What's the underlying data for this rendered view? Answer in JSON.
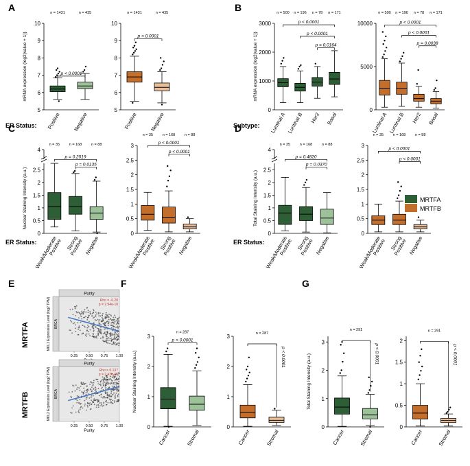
{
  "colors": {
    "mrtfa_dark": "#2d5e35",
    "mrtfa_light": "#9dc29a",
    "mrtfb_dark": "#c46e2c",
    "mrtfb_light": "#e8bf9a",
    "scatter_fill": "#e8e8e8",
    "trend": "#4a7bc4",
    "corr": "#c0392b"
  },
  "legend": {
    "items": [
      {
        "label": "MRTFA",
        "color": "#2d5e35"
      },
      {
        "label": "MRTFB",
        "color": "#c46e2c"
      }
    ]
  },
  "row_labels": {
    "er_status": "ER Status:",
    "subtype": "Subtype:"
  },
  "side_labels": {
    "mrtfa": "MRTFA",
    "mrtfb": "MRTFB"
  },
  "chart_data": [
    {
      "id": "A1",
      "panel_letter": "A",
      "type": "box",
      "ylabel": "mRNA expression (log2(value + 1))",
      "ylim": [
        5,
        10
      ],
      "yticks": [
        5,
        6,
        7,
        8,
        9,
        10
      ],
      "categories": [
        "Positive",
        "Negative"
      ],
      "n_labels": [
        "n = 1431",
        "n = 435"
      ],
      "boxes": [
        {
          "whislo": 5.6,
          "q1": 6.05,
          "med": 6.2,
          "q3": 6.38,
          "whishi": 6.85,
          "color": "#2d5e35",
          "outliers": [
            6.9,
            7.0,
            7.1,
            7.2,
            7.3,
            7.4,
            5.5
          ]
        },
        {
          "whislo": 5.6,
          "q1": 6.22,
          "med": 6.38,
          "q3": 6.6,
          "whishi": 7.1,
          "color": "#9dc29a",
          "outliers": [
            7.2,
            7.3,
            7.5
          ]
        }
      ],
      "comparisons": [
        {
          "from": 0,
          "to": 1,
          "y": 6.95,
          "label": "p < 0.0001"
        }
      ]
    },
    {
      "id": "A2",
      "type": "box",
      "ylabel": "",
      "ylim": [
        5,
        10
      ],
      "yticks": [
        5,
        6,
        7,
        8,
        9,
        10
      ],
      "categories": [
        "Positive",
        "Negative"
      ],
      "n_labels": [
        "n = 1431",
        "n = 435"
      ],
      "boxes": [
        {
          "whislo": 5.5,
          "q1": 6.6,
          "med": 6.9,
          "q3": 7.2,
          "whishi": 8.1,
          "color": "#c46e2c",
          "outliers": [
            8.2,
            8.3,
            8.4,
            8.5,
            8.6,
            8.7,
            8.9,
            5.4
          ]
        },
        {
          "whislo": 5.4,
          "q1": 6.1,
          "med": 6.3,
          "q3": 6.55,
          "whishi": 7.2,
          "color": "#e8bf9a",
          "outliers": [
            7.3,
            7.4,
            7.6,
            7.8,
            8.0,
            5.3
          ]
        }
      ],
      "comparisons": [
        {
          "from": 0,
          "to": 1,
          "y": 9.1,
          "label": "p < 0.0001"
        }
      ]
    },
    {
      "id": "B1",
      "panel_letter": "B",
      "type": "box",
      "ylabel": "mRNA expression (log2(value + 1))",
      "ylim": [
        0,
        3000
      ],
      "yticks": [
        0,
        1000,
        2000,
        3000
      ],
      "categories": [
        "Luminal A",
        "Luminal B",
        "Her2",
        "Basal"
      ],
      "n_labels": [
        "n = 500",
        "n = 196",
        "n = 78",
        "n = 171"
      ],
      "boxes": [
        {
          "whislo": 250,
          "q1": 800,
          "med": 940,
          "q3": 1080,
          "whishi": 1500,
          "color": "#2d5e35",
          "outliers": [
            1600,
            1700,
            1800
          ]
        },
        {
          "whislo": 250,
          "q1": 650,
          "med": 780,
          "q3": 920,
          "whishi": 1350,
          "color": "#2d5e35",
          "outliers": [
            1420,
            1500,
            1550
          ]
        },
        {
          "whislo": 400,
          "q1": 820,
          "med": 960,
          "q3": 1120,
          "whishi": 1500,
          "color": "#2d5e35",
          "outliers": [
            1600
          ]
        },
        {
          "whislo": 450,
          "q1": 880,
          "med": 1070,
          "q3": 1300,
          "whishi": 2050,
          "color": "#2d5e35",
          "outliers": []
        }
      ],
      "comparisons": [
        {
          "from": 0,
          "to": 3,
          "y": 2950,
          "label": "p < 0.0001"
        },
        {
          "from": 1,
          "to": 3,
          "y": 2550,
          "label": "p < 0.0001"
        },
        {
          "from": 2,
          "to": 3,
          "y": 2150,
          "label": "p = 0.0164"
        }
      ]
    },
    {
      "id": "B2",
      "type": "box",
      "ylabel": "",
      "ylim": [
        0,
        10000
      ],
      "yticks": [
        0,
        5000,
        10000
      ],
      "categories": [
        "Luminal A",
        "Luminal B",
        "Her2",
        "Basal"
      ],
      "n_labels": [
        "n = 500",
        "n = 196",
        "n = 78",
        "n = 171"
      ],
      "boxes": [
        {
          "whislo": 300,
          "q1": 1700,
          "med": 2500,
          "q3": 3400,
          "whishi": 5900,
          "color": "#c46e2c",
          "outliers": [
            6100,
            6400,
            6800,
            7200,
            7600,
            8000,
            8500,
            9000
          ]
        },
        {
          "whislo": 400,
          "q1": 1800,
          "med": 2500,
          "q3": 3200,
          "whishi": 5400,
          "color": "#c46e2c",
          "outliers": [
            5600,
            5900,
            6200,
            6600
          ]
        },
        {
          "whislo": 300,
          "q1": 1000,
          "med": 1300,
          "q3": 1800,
          "whishi": 2700,
          "color": "#c46e2c",
          "outliers": [
            3000,
            4600
          ]
        },
        {
          "whislo": 200,
          "q1": 700,
          "med": 1000,
          "q3": 1300,
          "whishi": 2100,
          "color": "#c46e2c",
          "outliers": [
            2300,
            2500,
            3400
          ]
        }
      ],
      "comparisons": [
        {
          "from": 0,
          "to": 3,
          "y": 9800,
          "label": "p < 0.0001"
        },
        {
          "from": 1,
          "to": 3,
          "y": 8600,
          "label": "p < 0.0001"
        },
        {
          "from": 2,
          "to": 3,
          "y": 7400,
          "label": "p = 0.0038"
        }
      ]
    },
    {
      "id": "C1",
      "panel_letter": "C",
      "type": "box",
      "ylabel": "Nuclear Staining Intensity (a.u.)",
      "ylim": [
        0,
        2.75
      ],
      "yticks": [
        0,
        0.5,
        1,
        1.5,
        2,
        2.5
      ],
      "break_tick": "4",
      "categories": [
        "Weak/Moderate Positive",
        "Strong Positive",
        "Negative"
      ],
      "n_labels": [
        "n = 35",
        "n = 168",
        "n = 88"
      ],
      "boxes": [
        {
          "whislo": 0.25,
          "q1": 0.55,
          "med": 1.05,
          "q3": 1.6,
          "whishi": 2.75,
          "color": "#2d5e35",
          "outliers": []
        },
        {
          "whislo": 0.1,
          "q1": 0.75,
          "med": 1.05,
          "q3": 1.45,
          "whishi": 2.35,
          "color": "#2d5e35",
          "outliers": [
            2.4,
            2.45
          ]
        },
        {
          "whislo": 0.05,
          "q1": 0.55,
          "med": 0.8,
          "q3": 1.05,
          "whishi": 2.05,
          "color": "#9dc29a",
          "outliers": [
            2.1,
            2.2,
            0.0
          ]
        }
      ],
      "comparisons": [
        {
          "from": 0,
          "to": 2,
          "y": 2.9,
          "label": "p = 0.2519"
        },
        {
          "from": 1,
          "to": 2,
          "y": 2.6,
          "label": "p = 0.0135"
        }
      ]
    },
    {
      "id": "C2",
      "type": "box",
      "ylabel": "",
      "ylim": [
        0,
        3
      ],
      "yticks": [
        0,
        0.5,
        1,
        1.5,
        2,
        2.5,
        3
      ],
      "categories": [
        "Weak/Moderate Positive",
        "Strong Positive",
        "Negative"
      ],
      "n_labels": [
        "n = 35",
        "n = 168",
        "n = 88"
      ],
      "boxes": [
        {
          "whislo": 0.1,
          "q1": 0.45,
          "med": 0.65,
          "q3": 0.95,
          "whishi": 1.4,
          "color": "#c46e2c",
          "outliers": []
        },
        {
          "whislo": 0.05,
          "q1": 0.35,
          "med": 0.55,
          "q3": 0.9,
          "whishi": 1.45,
          "color": "#c46e2c",
          "outliers": [
            1.6,
            1.8,
            1.95,
            2.15,
            2.3
          ]
        },
        {
          "whislo": 0.05,
          "q1": 0.15,
          "med": 0.22,
          "q3": 0.32,
          "whishi": 0.5,
          "color": "#e8bf9a",
          "outliers": [
            0.55
          ]
        }
      ],
      "comparisons": [
        {
          "from": 0,
          "to": 2,
          "y": 3.0,
          "label": "p < 0.0001"
        },
        {
          "from": 1,
          "to": 2,
          "y": 2.7,
          "label": "p < 0.0001"
        }
      ]
    },
    {
      "id": "D1",
      "panel_letter": "D",
      "type": "box",
      "ylabel": "Total Staining Intensity (a.u.)",
      "ylim": [
        0,
        2.75
      ],
      "yticks": [
        0,
        0.5,
        1,
        1.5,
        2,
        2.5
      ],
      "break_tick": "4",
      "categories": [
        "Weak/Moderate Positive",
        "Strong Positive",
        "Negative"
      ],
      "n_labels": [
        "n = 35",
        "n = 168",
        "n = 88"
      ],
      "boxes": [
        {
          "whislo": 0.1,
          "q1": 0.35,
          "med": 0.8,
          "q3": 1.1,
          "whishi": 2.2,
          "color": "#2d5e35",
          "outliers": []
        },
        {
          "whislo": 0.05,
          "q1": 0.5,
          "med": 0.75,
          "q3": 1.05,
          "whishi": 1.8,
          "color": "#2d5e35",
          "outliers": [
            1.9,
            2.0,
            2.1
          ]
        },
        {
          "whislo": 0.02,
          "q1": 0.35,
          "med": 0.6,
          "q3": 0.95,
          "whishi": 1.6,
          "color": "#9dc29a",
          "outliers": []
        }
      ],
      "comparisons": [
        {
          "from": 0,
          "to": 2,
          "y": 2.9,
          "label": "p = 0.4820"
        },
        {
          "from": 1,
          "to": 2,
          "y": 2.6,
          "label": "p = 0.0370"
        }
      ]
    },
    {
      "id": "D2",
      "type": "box",
      "ylabel": "",
      "ylim": [
        0,
        3
      ],
      "yticks": [
        0,
        0.5,
        1,
        1.5,
        2,
        2.5,
        3
      ],
      "categories": [
        "Weak/Moderate Positive",
        "Strong Positive",
        "Negative"
      ],
      "n_labels": [
        "n = 35",
        "n = 168",
        "n = 88"
      ],
      "boxes": [
        {
          "whislo": 0.05,
          "q1": 0.3,
          "med": 0.45,
          "q3": 0.6,
          "whishi": 1.0,
          "color": "#c46e2c",
          "outliers": []
        },
        {
          "whislo": 0.05,
          "q1": 0.3,
          "med": 0.45,
          "q3": 0.65,
          "whishi": 1.1,
          "color": "#c46e2c",
          "outliers": [
            1.2,
            1.3,
            1.45,
            1.6,
            1.75
          ]
        },
        {
          "whislo": 0.05,
          "q1": 0.15,
          "med": 0.22,
          "q3": 0.3,
          "whishi": 0.45,
          "color": "#e8bf9a",
          "outliers": [
            0.55
          ]
        }
      ],
      "comparisons": [
        {
          "from": 0,
          "to": 2,
          "y": 2.8,
          "label": "p < 0.0001"
        },
        {
          "from": 1,
          "to": 2,
          "y": 2.45,
          "label": "p < 0.0001"
        }
      ]
    },
    {
      "id": "E1",
      "panel_letter": "E",
      "type": "scatter",
      "title": "Purity",
      "strip_label": "BRCA",
      "xlabel": "Purity",
      "ylabel": "MKL1 Expression Level (log2 TPM)",
      "xticks": [
        0.25,
        0.5,
        0.75,
        1.0
      ],
      "xtick_labels": [
        "0.25",
        "0.50",
        "0.75",
        "1.00"
      ],
      "corr_label": "Rho = -0.20",
      "p_label": "p = 2.94e-10",
      "trend": [
        1.3,
        -0.6
      ]
    },
    {
      "id": "E2",
      "type": "scatter",
      "title": "Purity",
      "strip_label": "BRCA",
      "xlabel": "Purity",
      "ylabel": "MKL2 Expression Level (log2 TPM)",
      "xticks": [
        0.25,
        0.5,
        0.75,
        1.0
      ],
      "xtick_labels": [
        "0.25",
        "0.50",
        "0.75",
        "1.00"
      ],
      "corr_label": "Rho = 0.137",
      "p_label": "p = 2.43e-05",
      "trend": [
        -0.3,
        0.6
      ]
    },
    {
      "id": "F1",
      "panel_letter": "F",
      "type": "box",
      "ylabel": "Nuclear Staining Intensity (a.u.)",
      "ylim": [
        0,
        3
      ],
      "yticks": [
        0,
        1,
        2,
        3
      ],
      "categories": [
        "Cancer",
        "Stromal"
      ],
      "n_labels": [
        "n = 287"
      ],
      "boxes": [
        {
          "whislo": 0.02,
          "q1": 0.6,
          "med": 0.92,
          "q3": 1.3,
          "whishi": 2.4,
          "color": "#2d5e35",
          "outliers": [
            2.5,
            2.6,
            0.0
          ]
        },
        {
          "whislo": 0.05,
          "q1": 0.55,
          "med": 0.75,
          "q3": 1.02,
          "whishi": 1.85,
          "color": "#9dc29a",
          "outliers": [
            1.95,
            2.05,
            2.15,
            2.3,
            2.45,
            2.6
          ]
        }
      ],
      "comparisons": [
        {
          "from": 0,
          "to": 1,
          "y": 2.78,
          "label": "p < 0.0001"
        }
      ]
    },
    {
      "id": "F2",
      "type": "box",
      "ylabel": "",
      "ylim": [
        0,
        3
      ],
      "yticks": [
        0,
        1,
        2,
        3
      ],
      "categories": [
        "Cancer",
        "Stromal"
      ],
      "n_labels": [
        "n = 287"
      ],
      "boxes": [
        {
          "whislo": 0.02,
          "q1": 0.3,
          "med": 0.48,
          "q3": 0.72,
          "whishi": 1.4,
          "color": "#c46e2c",
          "outliers": [
            1.5,
            1.6,
            1.7,
            1.8,
            1.9,
            2.0,
            2.3
          ]
        },
        {
          "whislo": 0.05,
          "q1": 0.15,
          "med": 0.22,
          "q3": 0.32,
          "whishi": 0.55,
          "color": "#e8bf9a",
          "outliers": [
            0.6
          ]
        }
      ],
      "comparisons": [
        {
          "from": 0,
          "to": 1,
          "y": 2.75,
          "label": "p < 0.0001",
          "vertical": true
        }
      ]
    },
    {
      "id": "G1",
      "panel_letter": "G",
      "type": "box",
      "ylabel": "Total Staining Intensity (a.u.)",
      "ylim": [
        0,
        3.2
      ],
      "yticks": [
        0,
        1,
        2,
        3
      ],
      "categories": [
        "Cancer",
        "Stromal"
      ],
      "n_labels": [
        "n = 291"
      ],
      "boxes": [
        {
          "whislo": 0.02,
          "q1": 0.45,
          "med": 0.7,
          "q3": 1.02,
          "whishi": 1.8,
          "color": "#2d5e35",
          "outliers": [
            1.9,
            2.0,
            2.3,
            2.6,
            2.9,
            3.0
          ]
        },
        {
          "whislo": 0.05,
          "q1": 0.28,
          "med": 0.42,
          "q3": 0.65,
          "whishi": 1.15,
          "color": "#9dc29a",
          "outliers": [
            1.2,
            1.3,
            1.45,
            1.6,
            1.75,
            0.0
          ]
        }
      ],
      "comparisons": [
        {
          "from": 0,
          "to": 1,
          "y": 3.05,
          "label": "p < 0.0001",
          "vertical": true
        }
      ]
    },
    {
      "id": "G2",
      "type": "box",
      "ylabel": "",
      "ylim": [
        0,
        2.1
      ],
      "yticks": [
        0,
        0.5,
        1,
        1.5,
        2
      ],
      "categories": [
        "Cancer",
        "Stromal"
      ],
      "n_labels": [
        "n = 291"
      ],
      "boxes": [
        {
          "whislo": 0.02,
          "q1": 0.18,
          "med": 0.32,
          "q3": 0.5,
          "whishi": 1.0,
          "color": "#c46e2c",
          "outliers": [
            1.1,
            1.2,
            1.3,
            1.4,
            1.5,
            1.65,
            1.8
          ]
        },
        {
          "whislo": 0.02,
          "q1": 0.1,
          "med": 0.15,
          "q3": 0.2,
          "whishi": 0.3,
          "color": "#e8bf9a",
          "outliers": [
            0.32,
            0.35,
            0.4,
            0.45
          ]
        }
      ],
      "comparisons": [
        {
          "from": 0,
          "to": 1,
          "y": 1.98,
          "label": "p < 0.0001",
          "vertical": true
        }
      ]
    }
  ]
}
